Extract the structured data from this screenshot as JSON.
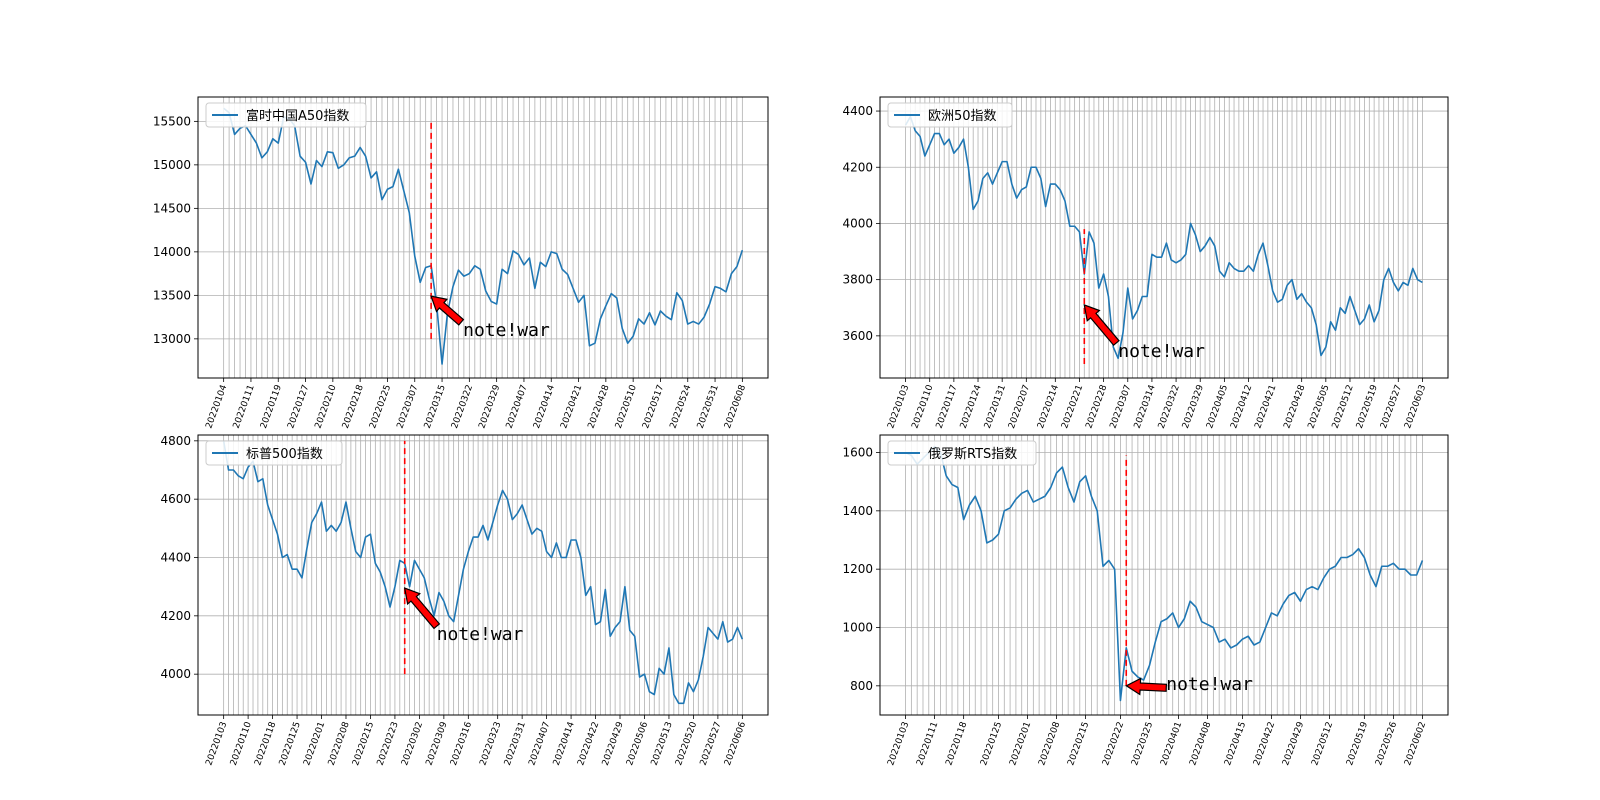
{
  "colors": {
    "line": "#1f77b4",
    "marker": "#ff0000",
    "arrow_fill": "#ff0000",
    "grid": "#b0b0b0"
  },
  "chart_data": [
    {
      "type": "line",
      "legend": "富时中国A50指数",
      "legend_position": "upper-left",
      "grid": true,
      "ylim": [
        12550,
        15780
      ],
      "yticks": [
        13000,
        13500,
        14000,
        14500,
        15000,
        15500
      ],
      "xtick_labels": [
        "20220104",
        "20220111",
        "20220119",
        "20220127",
        "20220210",
        "20220218",
        "20220225",
        "20220307",
        "20220315",
        "20220322",
        "20220329",
        "20220407",
        "20220414",
        "20220421",
        "20220428",
        "20220510",
        "20220517",
        "20220524",
        "20220531",
        "20220608"
      ],
      "values": [
        15650,
        15600,
        15350,
        15420,
        15450,
        15350,
        15250,
        15080,
        15150,
        15300,
        15250,
        15550,
        15530,
        15450,
        15100,
        15030,
        14780,
        15050,
        14980,
        15150,
        15140,
        14960,
        15000,
        15080,
        15100,
        15200,
        15100,
        14850,
        14920,
        14600,
        14720,
        14750,
        14950,
        14700,
        14450,
        13950,
        13650,
        13820,
        13840,
        13400,
        12710,
        13300,
        13600,
        13790,
        13720,
        13750,
        13840,
        13800,
        13550,
        13430,
        13400,
        13800,
        13750,
        14010,
        13970,
        13850,
        13930,
        13580,
        13880,
        13830,
        14000,
        13980,
        13800,
        13740,
        13580,
        13420,
        13500,
        12920,
        12950,
        13230,
        13380,
        13520,
        13470,
        13120,
        12950,
        13030,
        13230,
        13170,
        13300,
        13160,
        13320,
        13260,
        13220,
        13530,
        13440,
        13170,
        13200,
        13170,
        13250,
        13400,
        13600,
        13580,
        13540,
        13750,
        13830,
        14020
      ],
      "vline": {
        "index": 38,
        "y_from": 13000,
        "y_to": 15500
      },
      "annotation": {
        "text": "note!war",
        "point_index": 38,
        "point_y": 13490
      }
    },
    {
      "type": "line",
      "legend": "欧洲50指数",
      "legend_position": "upper-left",
      "grid": true,
      "ylim": [
        3450,
        4450
      ],
      "yticks": [
        3600,
        3800,
        4000,
        4200,
        4400
      ],
      "xtick_labels": [
        "20220103",
        "20220110",
        "20220117",
        "20220124",
        "20220131",
        "20220207",
        "20220214",
        "20220221",
        "20220228",
        "20220307",
        "20220314",
        "20220322",
        "20220329",
        "20220405",
        "20220412",
        "20220421",
        "20220428",
        "20220505",
        "20220512",
        "20220519",
        "20220527",
        "20220603"
      ],
      "values": [
        4350,
        4380,
        4330,
        4310,
        4240,
        4280,
        4320,
        4320,
        4280,
        4300,
        4250,
        4270,
        4300,
        4200,
        4050,
        4080,
        4160,
        4180,
        4140,
        4180,
        4220,
        4220,
        4140,
        4090,
        4120,
        4130,
        4200,
        4200,
        4160,
        4060,
        4140,
        4140,
        4120,
        4080,
        3990,
        3990,
        3970,
        3820,
        3970,
        3930,
        3770,
        3820,
        3740,
        3560,
        3520,
        3610,
        3770,
        3660,
        3690,
        3740,
        3740,
        3890,
        3880,
        3880,
        3930,
        3870,
        3860,
        3870,
        3890,
        4000,
        3960,
        3900,
        3920,
        3950,
        3920,
        3830,
        3810,
        3860,
        3840,
        3830,
        3830,
        3850,
        3830,
        3890,
        3930,
        3850,
        3760,
        3720,
        3730,
        3780,
        3800,
        3730,
        3750,
        3720,
        3700,
        3640,
        3530,
        3560,
        3650,
        3620,
        3700,
        3680,
        3740,
        3690,
        3640,
        3660,
        3710,
        3650,
        3690,
        3800,
        3840,
        3790,
        3760,
        3790,
        3780,
        3840,
        3800,
        3790
      ],
      "vline": {
        "index": 37,
        "y_from": 3500,
        "y_to": 3980
      },
      "annotation": {
        "text": "note!war",
        "point_index": 37,
        "point_y": 3710
      }
    },
    {
      "type": "line",
      "legend": "标普500指数",
      "legend_position": "upper-left",
      "grid": true,
      "ylim": [
        3860,
        4820
      ],
      "yticks": [
        4000,
        4200,
        4400,
        4600,
        4800
      ],
      "xtick_labels": [
        "20220103",
        "20220110",
        "20220118",
        "20220125",
        "20220201",
        "20220208",
        "20220215",
        "20220223",
        "20220302",
        "20220309",
        "20220316",
        "20220323",
        "20220331",
        "20220407",
        "20220414",
        "20220422",
        "20220429",
        "20220506",
        "20220513",
        "20220520",
        "20220527",
        "20220606"
      ],
      "values": [
        4800,
        4700,
        4700,
        4680,
        4670,
        4710,
        4730,
        4660,
        4670,
        4580,
        4530,
        4480,
        4400,
        4410,
        4360,
        4360,
        4330,
        4430,
        4520,
        4550,
        4590,
        4490,
        4510,
        4490,
        4520,
        4590,
        4500,
        4420,
        4400,
        4470,
        4480,
        4380,
        4350,
        4300,
        4230,
        4300,
        4390,
        4380,
        4300,
        4390,
        4360,
        4330,
        4260,
        4200,
        4280,
        4250,
        4200,
        4180,
        4270,
        4360,
        4420,
        4470,
        4470,
        4510,
        4460,
        4520,
        4580,
        4630,
        4600,
        4530,
        4550,
        4580,
        4530,
        4480,
        4500,
        4490,
        4420,
        4400,
        4450,
        4400,
        4400,
        4460,
        4460,
        4400,
        4270,
        4300,
        4170,
        4180,
        4290,
        4130,
        4160,
        4180,
        4300,
        4150,
        4130,
        3990,
        4000,
        3940,
        3930,
        4020,
        4000,
        4090,
        3930,
        3900,
        3900,
        3970,
        3940,
        3980,
        4060,
        4160,
        4140,
        4120,
        4180,
        4110,
        4120,
        4160,
        4120
      ],
      "vline": {
        "index": 37,
        "y_from": 4000,
        "y_to": 4800
      },
      "annotation": {
        "text": "note!war",
        "point_index": 37,
        "point_y": 4295
      }
    },
    {
      "type": "line",
      "legend": "俄罗斯RTS指数",
      "legend_position": "upper-left",
      "grid": true,
      "ylim": [
        700,
        1660
      ],
      "yticks": [
        800,
        1000,
        1200,
        1400,
        1600
      ],
      "xtick_labels": [
        "20220103",
        "20220111",
        "20220118",
        "20220125",
        "20220201",
        "20220208",
        "20220215",
        "20220222",
        "20220325",
        "20220401",
        "20220408",
        "20220415",
        "20220422",
        "20220429",
        "20220512",
        "20220519",
        "20220526",
        "20220602"
      ],
      "values": [
        1600,
        1590,
        1560,
        1580,
        1600,
        1620,
        1600,
        1520,
        1490,
        1480,
        1370,
        1420,
        1450,
        1400,
        1290,
        1300,
        1320,
        1400,
        1410,
        1440,
        1460,
        1470,
        1430,
        1440,
        1450,
        1480,
        1530,
        1550,
        1480,
        1430,
        1500,
        1520,
        1450,
        1400,
        1210,
        1230,
        1200,
        750,
        930,
        850,
        830,
        820,
        870,
        950,
        1020,
        1030,
        1050,
        1000,
        1030,
        1090,
        1070,
        1020,
        1010,
        1000,
        950,
        960,
        930,
        940,
        960,
        970,
        940,
        950,
        1000,
        1050,
        1040,
        1080,
        1110,
        1120,
        1090,
        1130,
        1140,
        1130,
        1170,
        1200,
        1210,
        1240,
        1240,
        1250,
        1270,
        1240,
        1180,
        1140,
        1210,
        1210,
        1220,
        1200,
        1200,
        1180,
        1180,
        1230
      ],
      "vline": {
        "index": 38,
        "y_from": 800,
        "y_to": 1590
      },
      "annotation": {
        "text": "note!war",
        "point_index": 38,
        "point_y": 800
      }
    }
  ]
}
